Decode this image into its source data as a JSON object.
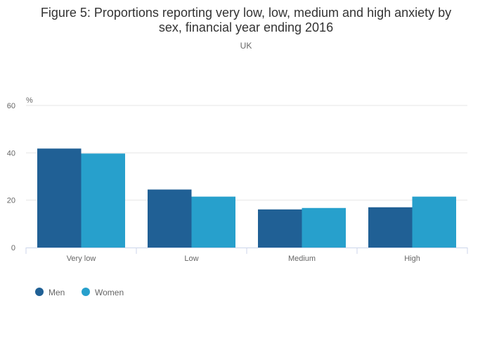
{
  "chart_data": {
    "type": "bar",
    "title_line1": "Figure 5: Proportions reporting very low, low, medium and high anxiety by",
    "title_line2": "sex, financial year ending 2016",
    "subtitle": "UK",
    "ylabel": "%",
    "ylim": [
      0,
      60
    ],
    "yticks": [
      0,
      20,
      40,
      60
    ],
    "categories": [
      "Very low",
      "Low",
      "Medium",
      "High"
    ],
    "series": [
      {
        "name": "Men",
        "color": "#206095",
        "values": [
          41.8,
          24.5,
          16.1,
          17.0
        ]
      },
      {
        "name": "Women",
        "color": "#27a0cc",
        "values": [
          39.7,
          21.5,
          16.7,
          21.5
        ]
      }
    ],
    "grid": true,
    "legend_position": "bottom-left"
  }
}
